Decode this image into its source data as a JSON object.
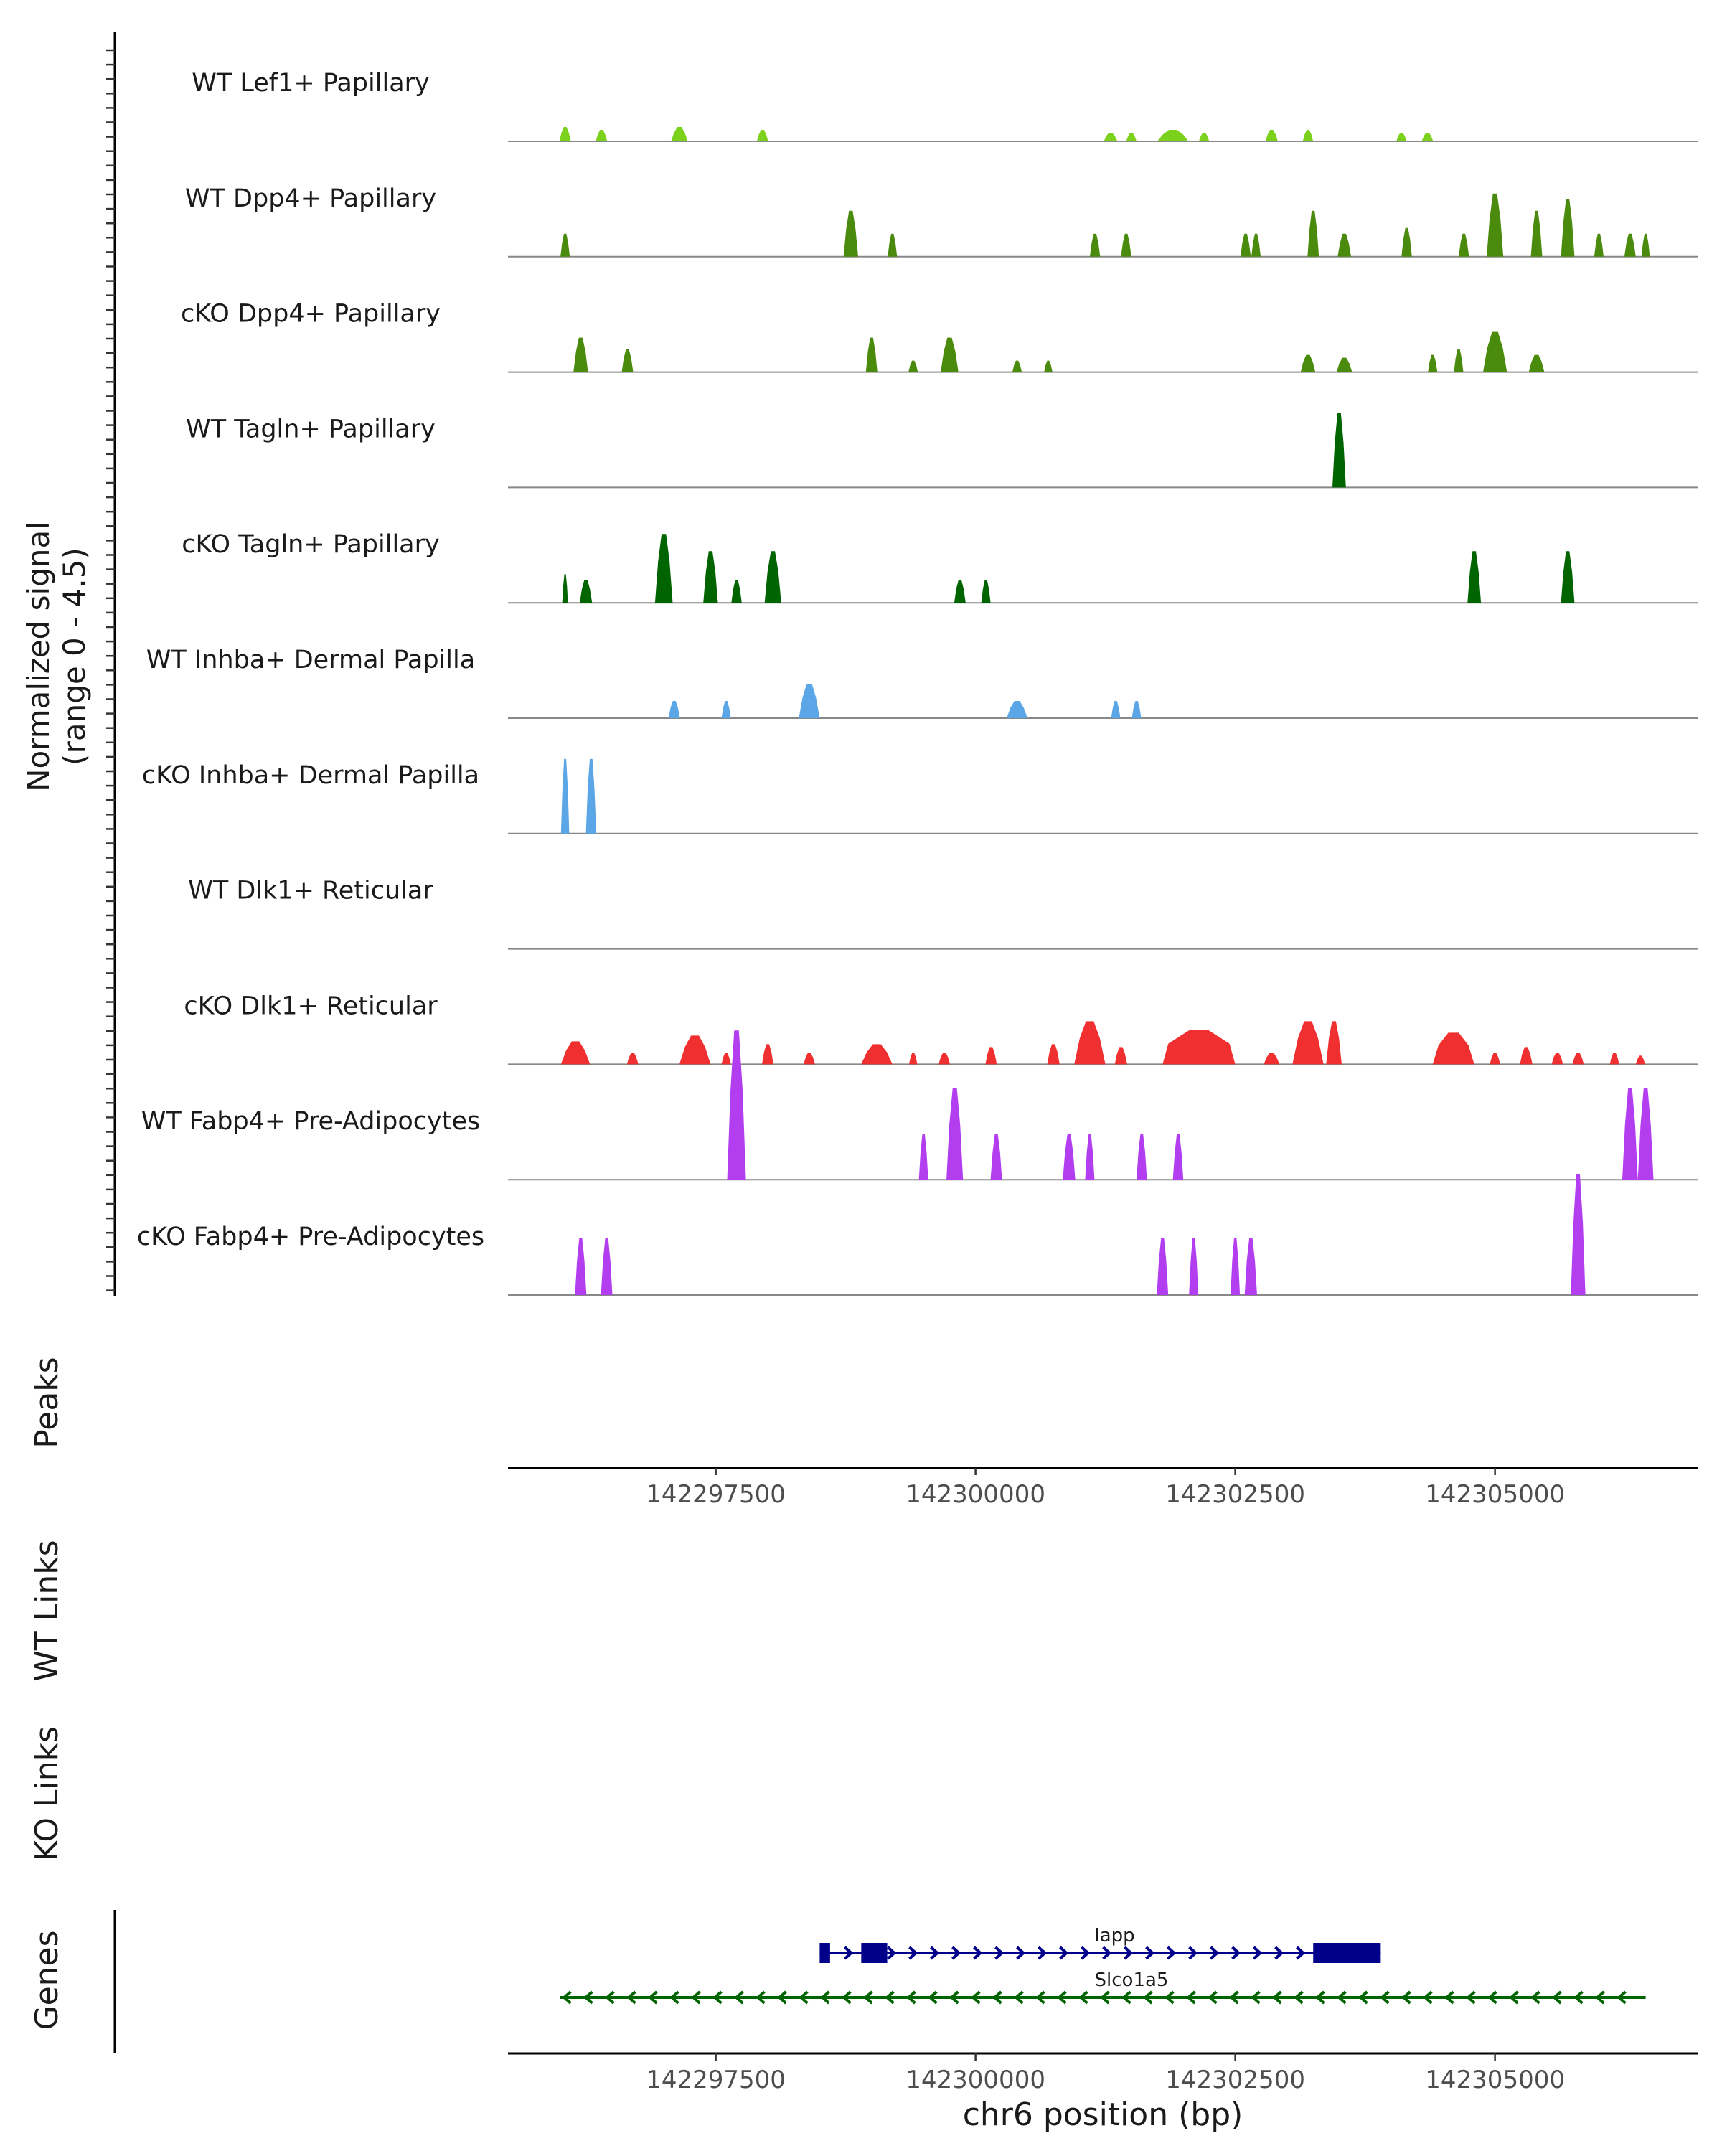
{
  "chart_data": {
    "type": "area",
    "title": "",
    "chromosome": "chr6",
    "xlabel": "chr6 position (bp)",
    "xlim": [
      142295500,
      142306950
    ],
    "xticks": [
      142297500,
      142300000,
      142302500,
      142305000
    ],
    "xtick_labels": [
      "142297500",
      "142300000",
      "142302500",
      "142305000"
    ],
    "coverage": {
      "ylabel_line1": "Normalized signal",
      "ylabel_line2": "(range 0 - 4.5)",
      "ylim": [
        0,
        4.5
      ],
      "tracks": [
        {
          "label": "WT Lef1+ Papillary",
          "color": "#7cd11c",
          "peaks": [
            [
              142296050,
              110,
              0.25
            ],
            [
              142296400,
              110,
              0.2
            ],
            [
              142297150,
              160,
              0.25
            ],
            [
              142297950,
              110,
              0.2
            ],
            [
              142301300,
              130,
              0.15
            ],
            [
              142301500,
              100,
              0.15
            ],
            [
              142301900,
              300,
              0.2
            ],
            [
              142302200,
              100,
              0.15
            ],
            [
              142302850,
              120,
              0.2
            ],
            [
              142303200,
              100,
              0.2
            ],
            [
              142304100,
              100,
              0.15
            ],
            [
              142304350,
              110,
              0.15
            ]
          ]
        },
        {
          "label": "WT Dpp4+ Papillary",
          "color": "#4a8a0d",
          "peaks": [
            [
              142296050,
              90,
              0.4
            ],
            [
              142298800,
              140,
              0.8
            ],
            [
              142299200,
              90,
              0.4
            ],
            [
              142301150,
              100,
              0.4
            ],
            [
              142301450,
              100,
              0.4
            ],
            [
              142302600,
              100,
              0.4
            ],
            [
              142302700,
              90,
              0.4
            ],
            [
              142303250,
              110,
              0.8
            ],
            [
              142303550,
              130,
              0.4
            ],
            [
              142304150,
              100,
              0.5
            ],
            [
              142304700,
              100,
              0.4
            ],
            [
              142305000,
              160,
              1.1
            ],
            [
              142305400,
              110,
              0.8
            ],
            [
              142305700,
              130,
              1.0
            ],
            [
              142306000,
              90,
              0.4
            ],
            [
              142306300,
              110,
              0.4
            ],
            [
              142306450,
              80,
              0.4
            ]
          ]
        },
        {
          "label": "cKO Dpp4+ Papillary",
          "color": "#4a8a0d",
          "peaks": [
            [
              142296200,
              140,
              0.6
            ],
            [
              142296650,
              110,
              0.4
            ],
            [
              142299000,
              110,
              0.6
            ],
            [
              142299400,
              90,
              0.2
            ],
            [
              142299750,
              170,
              0.6
            ],
            [
              142300400,
              90,
              0.2
            ],
            [
              142300700,
              80,
              0.2
            ],
            [
              142303200,
              140,
              0.3
            ],
            [
              142303550,
              150,
              0.25
            ],
            [
              142304400,
              90,
              0.3
            ],
            [
              142304650,
              90,
              0.4
            ],
            [
              142305000,
              230,
              0.7
            ],
            [
              142305400,
              150,
              0.3
            ]
          ]
        },
        {
          "label": "WT Tagln+ Papillary",
          "color": "#006400",
          "peaks": [
            [
              142303500,
              130,
              1.3
            ]
          ]
        },
        {
          "label": "cKO Tagln+ Papillary",
          "color": "#006400",
          "peaks": [
            [
              142296050,
              40,
              0.5
            ],
            [
              142296250,
              120,
              0.4
            ],
            [
              142297000,
              170,
              1.2
            ],
            [
              142297450,
              140,
              0.9
            ],
            [
              142297700,
              100,
              0.4
            ],
            [
              142298050,
              160,
              0.9
            ],
            [
              142299850,
              110,
              0.4
            ],
            [
              142300100,
              90,
              0.4
            ],
            [
              142304800,
              130,
              0.9
            ],
            [
              142305700,
              130,
              0.9
            ]
          ]
        },
        {
          "label": "WT Inhba+ Dermal Papilla",
          "color": "#5aa6e6",
          "peaks": [
            [
              142297100,
              110,
              0.3
            ],
            [
              142297600,
              90,
              0.3
            ],
            [
              142298400,
              200,
              0.6
            ],
            [
              142300400,
              200,
              0.3
            ],
            [
              142301350,
              90,
              0.3
            ],
            [
              142301550,
              90,
              0.3
            ]
          ]
        },
        {
          "label": "cKO Inhba+ Dermal Papilla",
          "color": "#5aa6e6",
          "peaks": [
            [
              142296050,
              80,
              1.3
            ],
            [
              142296300,
              100,
              1.3
            ]
          ]
        },
        {
          "label": "WT Dlk1+ Reticular",
          "color": "#f03030",
          "peaks": []
        },
        {
          "label": "cKO Dlk1+ Reticular",
          "color": "#f03030",
          "peaks": [
            [
              142296150,
              280,
              0.4
            ],
            [
              142296700,
              110,
              0.2
            ],
            [
              142297300,
              300,
              0.5
            ],
            [
              142297600,
              90,
              0.2
            ],
            [
              142298000,
              110,
              0.35
            ],
            [
              142298400,
              110,
              0.2
            ],
            [
              142299050,
              300,
              0.35
            ],
            [
              142299400,
              80,
              0.2
            ],
            [
              142299700,
              110,
              0.2
            ],
            [
              142300150,
              110,
              0.3
            ],
            [
              142300750,
              120,
              0.35
            ],
            [
              142301100,
              300,
              0.75
            ],
            [
              142301400,
              120,
              0.3
            ],
            [
              142302150,
              700,
              0.6
            ],
            [
              142302850,
              150,
              0.2
            ],
            [
              142303200,
              300,
              0.75
            ],
            [
              142303450,
              150,
              0.75
            ],
            [
              142304600,
              400,
              0.55
            ],
            [
              142305000,
              100,
              0.2
            ],
            [
              142305300,
              120,
              0.3
            ],
            [
              142305600,
              110,
              0.2
            ],
            [
              142305800,
              110,
              0.2
            ],
            [
              142306150,
              90,
              0.2
            ],
            [
              142306400,
              90,
              0.15
            ]
          ]
        },
        {
          "label": "WT Fabp4+ Pre-Adipocytes",
          "color": "#b23ef0",
          "peaks": [
            [
              142297700,
              180,
              2.6
            ],
            [
              142299500,
              90,
              0.8
            ],
            [
              142299800,
              160,
              1.6
            ],
            [
              142300200,
              110,
              0.8
            ],
            [
              142300900,
              120,
              0.8
            ],
            [
              142301100,
              90,
              0.8
            ],
            [
              142301600,
              100,
              0.8
            ],
            [
              142301950,
              100,
              0.8
            ],
            [
              142306300,
              150,
              1.6
            ],
            [
              142306450,
              150,
              1.6
            ]
          ]
        },
        {
          "label": "cKO Fabp4+ Pre-Adipocytes",
          "color": "#b23ef0",
          "peaks": [
            [
              142296200,
              110,
              1.0
            ],
            [
              142296450,
              110,
              1.0
            ],
            [
              142301800,
              110,
              1.0
            ],
            [
              142302100,
              90,
              1.0
            ],
            [
              142302500,
              90,
              1.0
            ],
            [
              142302650,
              120,
              1.0
            ],
            [
              142305800,
              140,
              2.1
            ]
          ]
        }
      ]
    },
    "panel_labels": {
      "peaks": "Peaks",
      "wt_links": "WT Links",
      "ko_links": "KO Links",
      "genes": "Genes"
    },
    "genes": [
      {
        "name": "Iapp",
        "strand": "+",
        "color": "#00008b",
        "start": 142298500,
        "end": 142303900,
        "exons": [
          [
            142298500,
            142298600
          ],
          [
            142298900,
            142299150
          ],
          [
            142303250,
            142303900
          ]
        ]
      },
      {
        "name": "Slco1a5",
        "strand": "-",
        "color": "#006400",
        "start": 142296000,
        "end": 142306450,
        "exons": []
      }
    ]
  }
}
